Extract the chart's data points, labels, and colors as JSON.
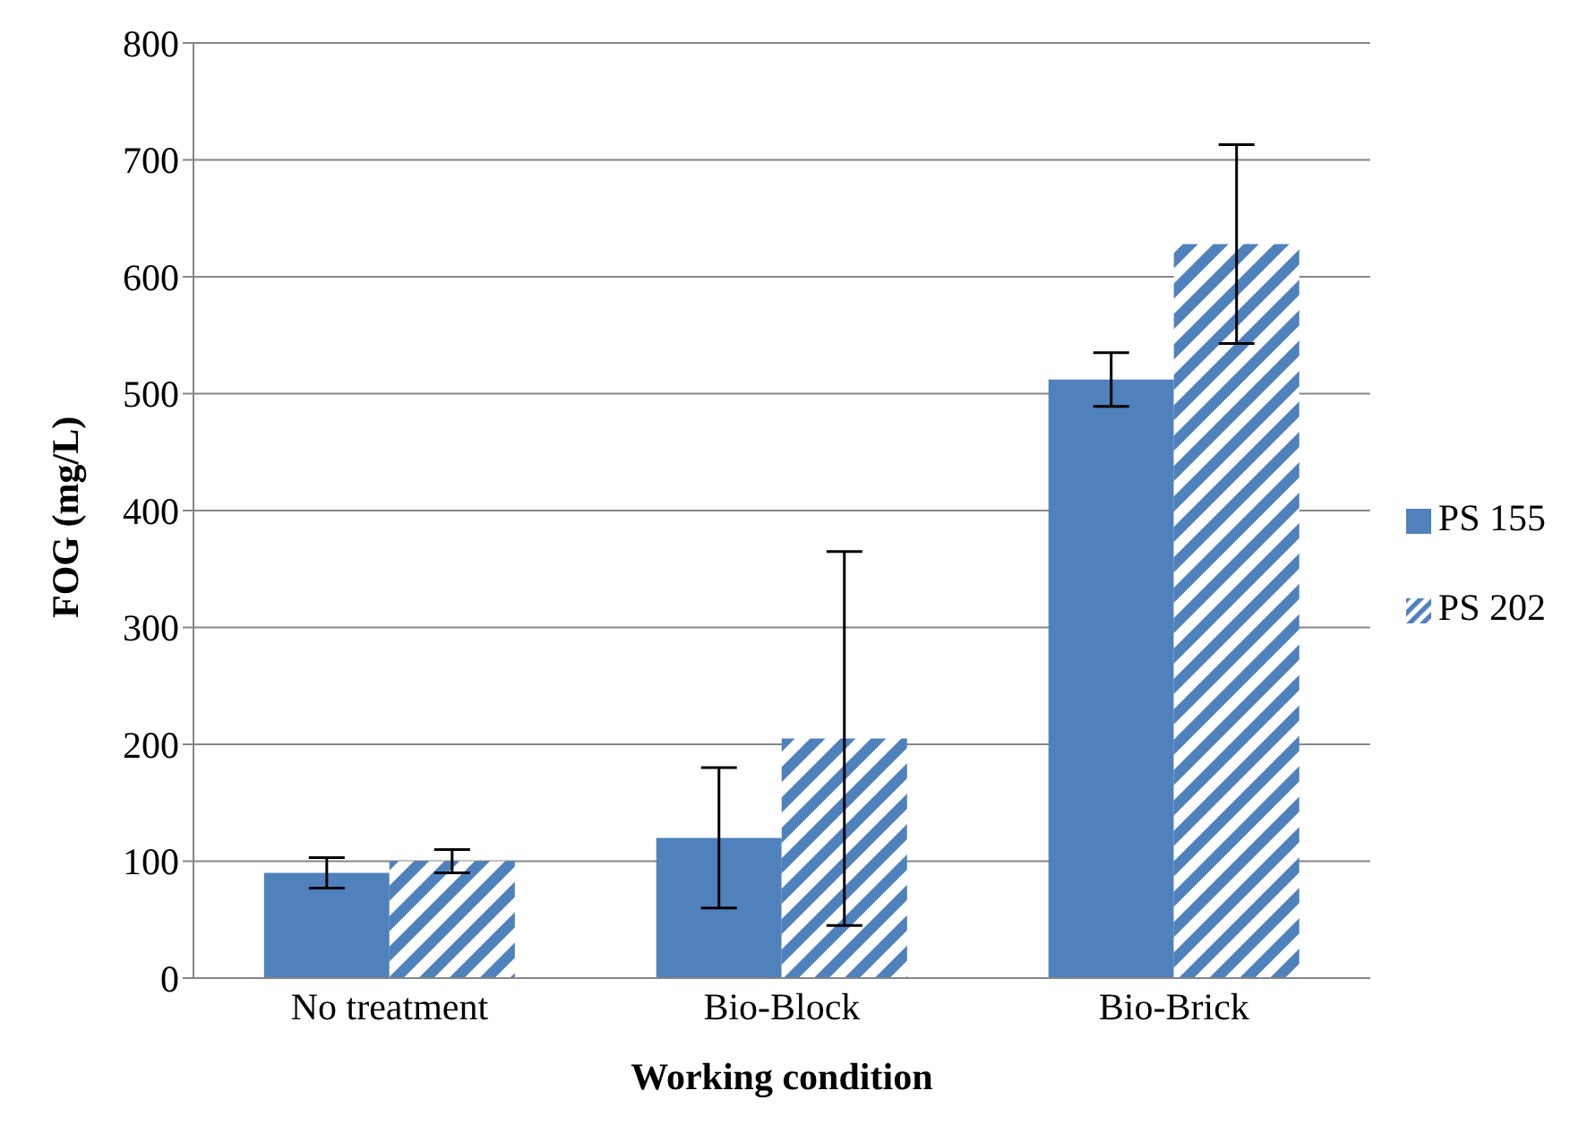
{
  "chart_data": {
    "type": "bar",
    "xlabel": "Working condition",
    "ylabel": "FOG (mg/L)",
    "categories": [
      "No treatment",
      "Bio-Block",
      "Bio-Brick"
    ],
    "series": [
      {
        "name": "PS 155",
        "color": "#4f81bd",
        "values": [
          90,
          120,
          512
        ],
        "errors": [
          13,
          60,
          23
        ]
      },
      {
        "name": "PS 202",
        "color": "#4f81bd",
        "values": [
          100,
          205,
          628
        ],
        "errors": [
          10,
          160,
          85
        ]
      }
    ],
    "ylim": [
      0,
      800
    ],
    "yticks": [
      0,
      100,
      200,
      300,
      400,
      500,
      600,
      700,
      800
    ],
    "grid": "y",
    "legend": "right"
  }
}
